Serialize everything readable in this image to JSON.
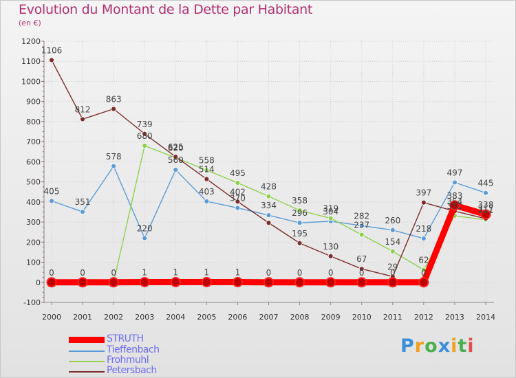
{
  "title": "Evolution du Montant de la Dette par Habitant",
  "subtitle": "(en €)",
  "logo_text": "Proxiti",
  "chart_data": {
    "type": "line",
    "x": [
      "2000",
      "2001",
      "2002",
      "2003",
      "2004",
      "2005",
      "2006",
      "2007",
      "2008",
      "2009",
      "2010",
      "2011",
      "2012",
      "2013",
      "2014"
    ],
    "ylim": [
      -100,
      1200
    ],
    "yticks": [
      -100,
      0,
      100,
      200,
      300,
      400,
      500,
      600,
      700,
      800,
      900,
      1000,
      1100,
      1200
    ],
    "grid": true,
    "legend_position": "bottom-left",
    "series": [
      {
        "name": "Tieffenbach",
        "color": "#5b9bd5",
        "values": [
          405,
          351,
          578,
          220,
          560,
          403,
          370,
          334,
          296,
          304,
          282,
          260,
          218,
          497,
          445
        ],
        "labels": [
          "405",
          "351",
          "578",
          "220",
          "560",
          "403",
          "370",
          "334",
          "296",
          "304",
          "282",
          "260",
          "218",
          "497",
          "445"
        ]
      },
      {
        "name": "Frohmuhl",
        "color": "#8fd14f",
        "values": [
          0,
          0,
          0,
          680,
          620,
          558,
          495,
          428,
          358,
          319,
          237,
          154,
          62,
          331,
          311
        ],
        "labels": [
          "",
          "",
          "",
          "680",
          "620",
          "558",
          "495",
          "428",
          "358",
          "319",
          "237",
          "154",
          "62",
          "331",
          "311"
        ]
      },
      {
        "name": "Petersbach",
        "color": "#7b2c2c",
        "values": [
          1106,
          812,
          863,
          739,
          625,
          514,
          402,
          296,
          195,
          130,
          67,
          29,
          397,
          354,
          317
        ],
        "labels": [
          "1106",
          "812",
          "863",
          "739",
          "625",
          "514",
          "402",
          "",
          "195",
          "130",
          "67",
          "29",
          "397",
          "354",
          "317"
        ]
      },
      {
        "name": "STRUTH",
        "color": "#ff0000",
        "values": [
          0,
          0,
          0,
          1,
          1,
          1,
          1,
          0,
          0,
          0,
          0,
          0,
          0,
          383,
          338
        ],
        "labels": [
          "0",
          "0",
          "0",
          "1",
          "1",
          "1",
          "1",
          "0",
          "0",
          "0",
          "0",
          "0",
          "0",
          "383",
          "338"
        ]
      }
    ]
  }
}
